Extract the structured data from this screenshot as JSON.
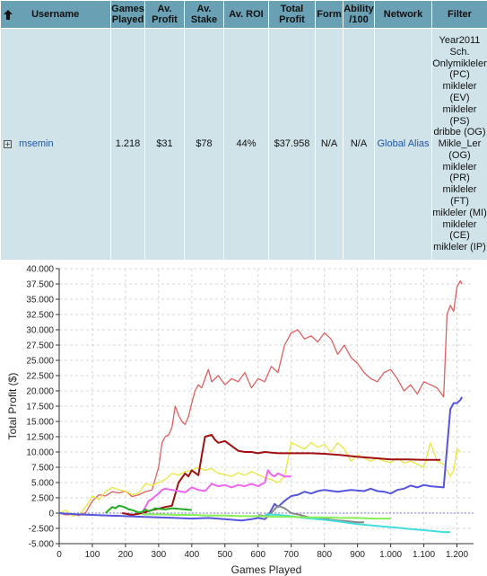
{
  "table": {
    "headers": {
      "username": "Username",
      "games": "Games Played",
      "avprofit": "Av. Profit",
      "avstake": "Av. Stake",
      "avroi": "Av. ROI",
      "totalprofit": "Total Profit",
      "form": "Form",
      "ability": "Ability /100",
      "network": "Network",
      "filter": "Filter"
    },
    "row": {
      "username": "msemin",
      "games": "1.218",
      "avprofit": "$31",
      "avstake": "$78",
      "avroi": "44%",
      "totalprofit": "$37.958",
      "form": "N/A",
      "ability": "N/A",
      "network": "Global Alias",
      "filter": "Year2011\nSch.\nOnlymikleler\n(PC)\nmikleler\n(EV)\nmikleler\n(PS)\ndribbe (OG)\nMikle_Ler\n(OG)\nmikleler\n(PR)\nmikleler\n(FT)\nmikleler (MI)\nmikleler\n(CE)\nmikleler (IP)"
    }
  },
  "chart_data": {
    "type": "line",
    "xlabel": "Games Played",
    "ylabel": "Total Profit ($)",
    "xlim": [
      0,
      1250
    ],
    "ylim": [
      -5000,
      40000
    ],
    "xticks": [
      0,
      100,
      200,
      300,
      400,
      500,
      600,
      700,
      800,
      900,
      1000,
      1100,
      1200
    ],
    "xtick_labels": [
      "0",
      "100",
      "200",
      "300",
      "400",
      "500",
      "600",
      "700",
      "800",
      "900",
      "1.000",
      "1.100",
      "1.200"
    ],
    "yticks": [
      -5000,
      -2500,
      0,
      2500,
      5000,
      7500,
      10000,
      12500,
      15000,
      17500,
      20000,
      22500,
      25000,
      27500,
      30000,
      32500,
      35000,
      37500,
      40000
    ],
    "ytick_labels": [
      "-5.000",
      "-2.500",
      "0",
      "2.500",
      "5.000",
      "7.500",
      "10.000",
      "12.500",
      "15.000",
      "17.500",
      "20.000",
      "22.500",
      "25.000",
      "27.500",
      "30.000",
      "32.500",
      "35.000",
      "37.500",
      "40.000"
    ],
    "grid": true,
    "zero_line_color": "#7b7fd6",
    "series": [
      {
        "color": "#e06060",
        "x": [
          0,
          20,
          40,
          60,
          80,
          100,
          120,
          140,
          160,
          180,
          200,
          220,
          240,
          260,
          280,
          300,
          310,
          320,
          330,
          340,
          350,
          360,
          370,
          380,
          390,
          400,
          410,
          420,
          430,
          440,
          450,
          460,
          480,
          500,
          520,
          540,
          560,
          580,
          600,
          620,
          640,
          660,
          680,
          700,
          720,
          740,
          760,
          780,
          800,
          820,
          840,
          860,
          880,
          900,
          920,
          940,
          960,
          980,
          1000,
          1020,
          1040,
          1060,
          1080,
          1100,
          1120,
          1140,
          1160,
          1170,
          1180,
          1190,
          1200,
          1210,
          1215
        ],
        "y": [
          0,
          -300,
          -200,
          -400,
          100,
          2000,
          3000,
          2800,
          3500,
          3300,
          3600,
          2700,
          3000,
          3500,
          3800,
          7500,
          11500,
          12500,
          12800,
          14000,
          17500,
          16000,
          15000,
          14500,
          15800,
          18000,
          20000,
          21000,
          20500,
          22000,
          23500,
          21500,
          22500,
          21000,
          22000,
          21500,
          23000,
          20500,
          22000,
          21500,
          24000,
          23000,
          27500,
          29500,
          30000,
          28500,
          29000,
          28000,
          29500,
          28500,
          26000,
          27500,
          25500,
          24500,
          23000,
          22000,
          21500,
          23000,
          23500,
          22000,
          20000,
          21000,
          19500,
          21500,
          21000,
          20500,
          19000,
          32500,
          34000,
          33000,
          37000,
          38000,
          37500
        ]
      },
      {
        "color": "#e8e840",
        "x": [
          0,
          20,
          40,
          60,
          80,
          100,
          120,
          140,
          160,
          180,
          200,
          220,
          240,
          260,
          280,
          300,
          320,
          340,
          360,
          380,
          400,
          420,
          440,
          460,
          480,
          500,
          520,
          540,
          560,
          580,
          600,
          620,
          640,
          660,
          680,
          700,
          720,
          740,
          760,
          780,
          800,
          820,
          840,
          860,
          880,
          900,
          920,
          940,
          960,
          980,
          1000,
          1020,
          1040,
          1060,
          1080,
          1100,
          1120,
          1140,
          1160,
          1180,
          1190,
          1200,
          1210
        ],
        "y": [
          0,
          500,
          -500,
          -200,
          1000,
          2800,
          2200,
          3500,
          4200,
          3800,
          3600,
          3000,
          3300,
          4800,
          4500,
          5000,
          5500,
          6500,
          6200,
          6800,
          7000,
          7500,
          7000,
          7300,
          6500,
          6300,
          6000,
          6600,
          6200,
          6800,
          6300,
          5800,
          5500,
          5000,
          6000,
          11500,
          11000,
          10500,
          11500,
          10800,
          11200,
          10000,
          11500,
          10500,
          8500,
          9500,
          9000,
          8500,
          9000,
          8500,
          8300,
          9000,
          8200,
          8500,
          8000,
          7500,
          11500,
          8500,
          8000,
          6000,
          7000,
          10500,
          10000
        ]
      },
      {
        "color": "#a01010",
        "x": [
          190,
          220,
          250,
          280,
          300,
          320,
          340,
          360,
          380,
          390,
          400,
          420,
          440,
          460,
          470,
          480,
          500,
          520,
          540,
          560,
          580,
          600,
          620,
          660,
          700,
          760,
          800,
          850,
          900,
          950,
          1000,
          1050,
          1100,
          1150
        ],
        "y": [
          0,
          -300,
          0,
          500,
          700,
          1000,
          1200,
          5000,
          6500,
          6000,
          7000,
          6200,
          12500,
          12800,
          12000,
          11500,
          11800,
          11000,
          10200,
          10000,
          10000,
          9800,
          10000,
          9800,
          9800,
          9800,
          9700,
          9500,
          9200,
          9000,
          8800,
          8800,
          8700,
          8700
        ]
      },
      {
        "color": "#ee66ee",
        "x": [
          250,
          260,
          270,
          280,
          290,
          300,
          310,
          320,
          340,
          360,
          380,
          400,
          420,
          440,
          460,
          480,
          500,
          520,
          540,
          560,
          580,
          600,
          620,
          630,
          640,
          650,
          660,
          680,
          700
        ],
        "y": [
          0,
          1000,
          2000,
          2300,
          2800,
          3200,
          3800,
          4000,
          3800,
          3600,
          3400,
          4200,
          3800,
          3600,
          4800,
          4400,
          4600,
          4200,
          4600,
          4400,
          4800,
          4400,
          5000,
          7000,
          6300,
          6000,
          6500,
          6000,
          6000
        ]
      },
      {
        "color": "#5555dd",
        "x": [
          0,
          50,
          100,
          150,
          200,
          250,
          300,
          350,
          400,
          450,
          500,
          550,
          580,
          600,
          620,
          630,
          640,
          650,
          660,
          680,
          700,
          720,
          740,
          760,
          780,
          800,
          840,
          880,
          920,
          940,
          960,
          980,
          1000,
          1020,
          1040,
          1060,
          1080,
          1100,
          1120,
          1140,
          1160,
          1180,
          1190,
          1200,
          1210,
          1215
        ],
        "y": [
          0,
          -200,
          -300,
          -400,
          -500,
          -600,
          -700,
          -800,
          -900,
          -800,
          -1000,
          -1200,
          -1000,
          -800,
          -1000,
          -500,
          500,
          1500,
          1000,
          2000,
          2800,
          3000,
          3500,
          3200,
          3600,
          3800,
          3500,
          3800,
          3600,
          4000,
          3600,
          3500,
          3200,
          3800,
          4000,
          4500,
          4200,
          4600,
          4400,
          4300,
          4200,
          17000,
          18000,
          18000,
          18500,
          19000
        ]
      },
      {
        "color": "#22aa22",
        "x": [
          140,
          150,
          160,
          170,
          180,
          190,
          200,
          210,
          220,
          230,
          240,
          250,
          260,
          270,
          280,
          290,
          300,
          320,
          340,
          360,
          380,
          400
        ],
        "y": [
          0,
          500,
          1000,
          800,
          1200,
          1100,
          900,
          600,
          500,
          300,
          100,
          200,
          600,
          300,
          500,
          800,
          700,
          600,
          800,
          700,
          600,
          500
        ]
      },
      {
        "color": "#888888",
        "x": [
          600,
          620,
          640,
          660,
          680,
          700,
          720,
          740,
          760,
          780,
          800,
          820,
          840,
          860,
          880,
          900,
          920
        ],
        "y": [
          -300,
          -500,
          0,
          1200,
          800,
          0,
          -200,
          -500,
          -800,
          -1000,
          -900,
          -1100,
          -1200,
          -1300,
          -1400,
          -1500,
          -1500
        ]
      },
      {
        "color": "#44dddd",
        "x": [
          620,
          660,
          700,
          740,
          780,
          820,
          860,
          900,
          940,
          980,
          1020,
          1060,
          1100,
          1140,
          1160,
          1180
        ],
        "y": [
          -200,
          -300,
          -500,
          -800,
          -1000,
          -1200,
          -1500,
          -1800,
          -2000,
          -2200,
          -2400,
          -2600,
          -2800,
          -3000,
          -3100,
          -3100
        ]
      },
      {
        "color": "#88ee55",
        "x": [
          250,
          300,
          350,
          400,
          450,
          500,
          550,
          600,
          650,
          700,
          750,
          800,
          850,
          900,
          950,
          1000
        ],
        "y": [
          -200,
          -200,
          -300,
          -300,
          -400,
          -400,
          -500,
          -500,
          -600,
          -600,
          -700,
          -700,
          -800,
          -800,
          -900,
          -900
        ]
      }
    ]
  }
}
